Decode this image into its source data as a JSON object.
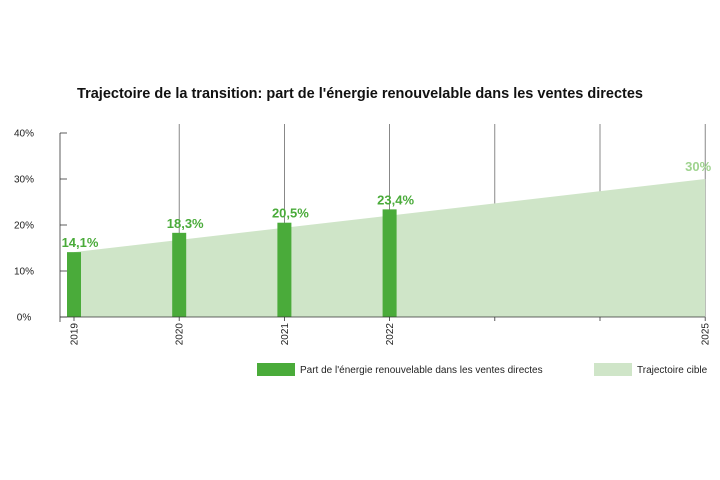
{
  "chart_data": {
    "type": "bar",
    "title": "Trajectoire de la transition: part de l'énergie renouvelable dans les ventes directes",
    "xlabel": "",
    "ylabel": "",
    "x_years": [
      2019,
      2020,
      2021,
      2022,
      2023,
      2024,
      2025
    ],
    "x_tick_labels": [
      "2019",
      "2020",
      "2021",
      "2022",
      "",
      "",
      "2025"
    ],
    "ylim": [
      0,
      40
    ],
    "y_ticks": [
      0,
      10,
      20,
      30,
      40
    ],
    "y_tick_labels": [
      "0%",
      "10%",
      "20%",
      "30%",
      "40%"
    ],
    "grid": "vertical",
    "series": [
      {
        "name": "Part de l'énergie renouvelable dans les ventes directes",
        "kind": "bar",
        "color": "#4aab3a",
        "x": [
          2019,
          2020,
          2021,
          2022
        ],
        "values": [
          14.1,
          18.3,
          20.5,
          23.4
        ],
        "labels": [
          "14,1%",
          "18,3%",
          "20,5%",
          "23,4%"
        ]
      },
      {
        "name": "Trajectoire cible",
        "kind": "area",
        "color": "#cfe5c8",
        "x": [
          2019,
          2025
        ],
        "values": [
          14.1,
          30
        ],
        "end_label": "30%",
        "end_label_color": "#9fd38f"
      }
    ],
    "legend_position": "bottom"
  }
}
